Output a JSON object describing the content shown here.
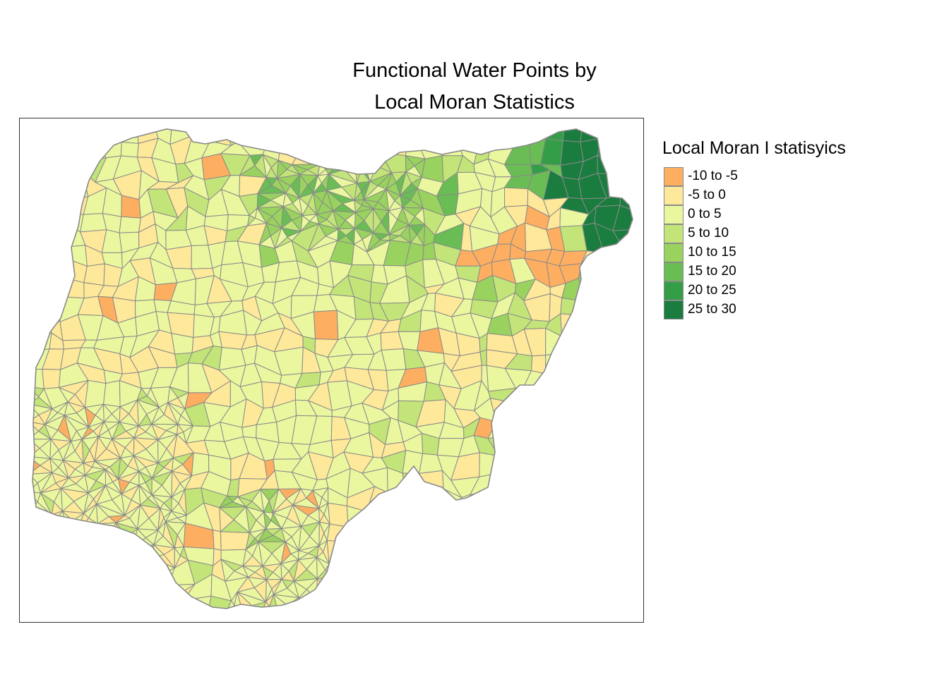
{
  "title_line1": "Functional Water Points by",
  "title_line2": "Local Moran Statistics",
  "legend": {
    "title": "Local Moran I statisyics",
    "classes": [
      {
        "label": "-10 to -5",
        "color": "#fdae61"
      },
      {
        "label": "-5 to 0",
        "color": "#fee899"
      },
      {
        "label": "0 to 5",
        "color": "#eaf79f"
      },
      {
        "label": "5 to 10",
        "color": "#c2e479"
      },
      {
        "label": "10 to 15",
        "color": "#99d25f"
      },
      {
        "label": "15 to 20",
        "color": "#6abd54"
      },
      {
        "label": "20 to 25",
        "color": "#339e47"
      },
      {
        "label": "25 to 30",
        "color": "#1a7c3f"
      }
    ]
  },
  "map": {
    "border_color": "#8a8a8a",
    "frame_color": "#333333"
  }
}
